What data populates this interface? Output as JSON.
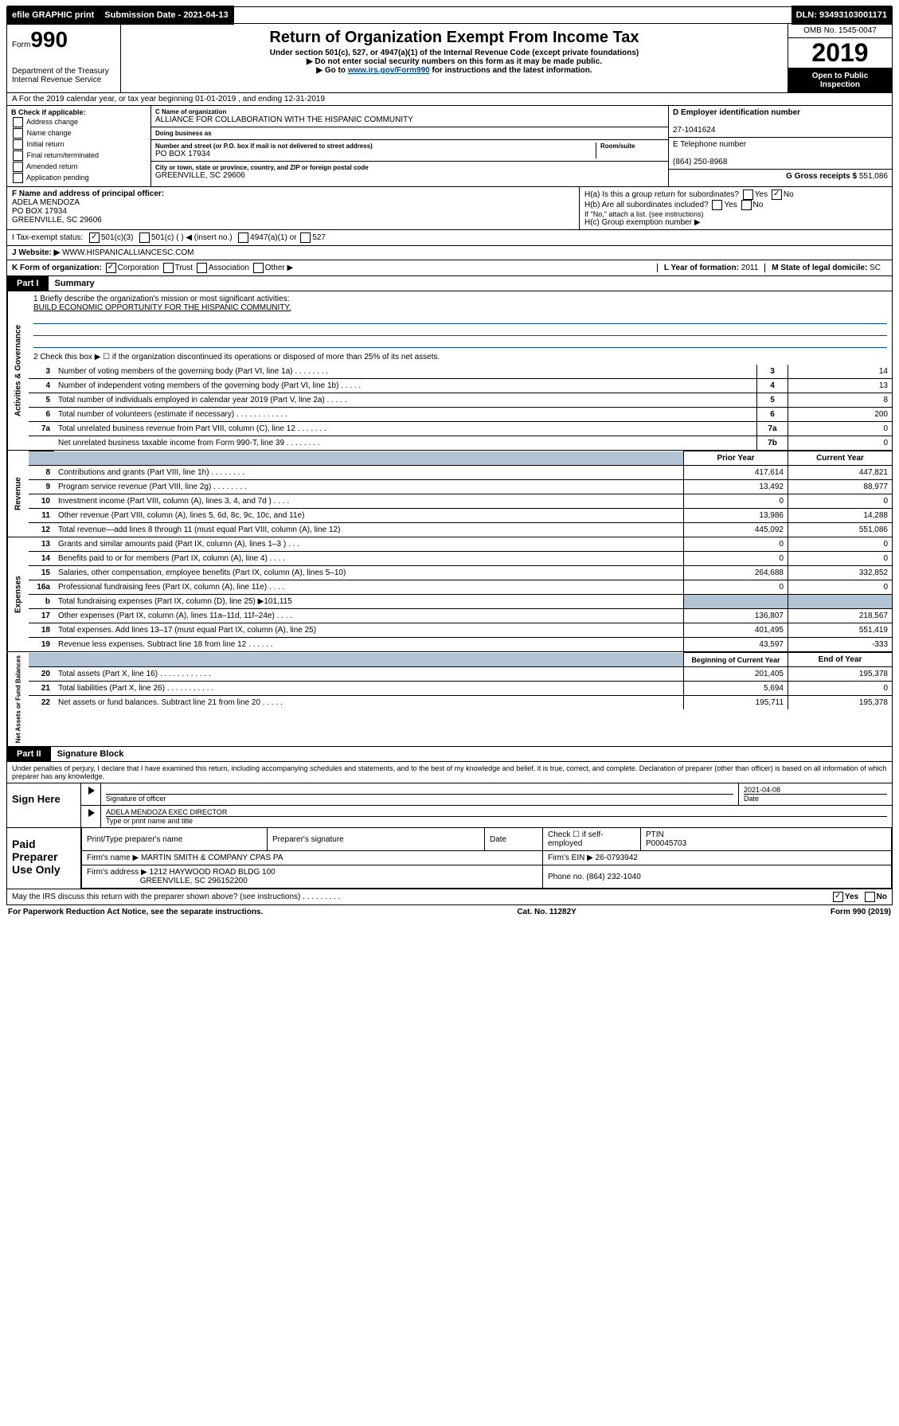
{
  "topbar": {
    "efile": "efile GRAPHIC print",
    "submission_label": "Submission Date - 2021-04-13",
    "dln": "DLN: 93493103001171"
  },
  "header": {
    "form_prefix": "Form",
    "form_number": "990",
    "title": "Return of Organization Exempt From Income Tax",
    "subtitle": "Under section 501(c), 527, or 4947(a)(1) of the Internal Revenue Code (except private foundations)",
    "note1": "▶ Do not enter social security numbers on this form as it may be made public.",
    "note2_prefix": "▶ Go to ",
    "note2_link": "www.irs.gov/Form990",
    "note2_suffix": " for instructions and the latest information.",
    "dept": "Department of the Treasury\nInternal Revenue Service",
    "omb": "OMB No. 1545-0047",
    "year": "2019",
    "open": "Open to Public Inspection"
  },
  "row_a": "A For the 2019 calendar year, or tax year beginning 01-01-2019   , and ending 12-31-2019",
  "section_b": {
    "label": "B Check if applicable:",
    "items": [
      "Address change",
      "Name change",
      "Initial return",
      "Final return/terminated",
      "Amended return",
      "Application pending"
    ]
  },
  "section_c": {
    "name_label": "C Name of organization",
    "name": "ALLIANCE FOR COLLABORATION WITH THE HISPANIC COMMUNITY",
    "dba_label": "Doing business as",
    "dba": "",
    "addr_label": "Number and street (or P.O. box if mail is not delivered to street address)",
    "room_label": "Room/suite",
    "addr": "PO BOX 17934",
    "city_label": "City or town, state or province, country, and ZIP or foreign postal code",
    "city": "GREENVILLE, SC  29606"
  },
  "section_d": {
    "ein_label": "D Employer identification number",
    "ein": "27-1041624",
    "phone_label": "E Telephone number",
    "phone": "(864) 250-8968",
    "gross_label": "G Gross receipts $",
    "gross": "551,086"
  },
  "section_f": {
    "label": "F  Name and address of principal officer:",
    "name": "ADELA MENDOZA",
    "addr1": "PO BOX 17934",
    "addr2": "GREENVILLE, SC  29606"
  },
  "section_h": {
    "ha": "H(a)  Is this a group return for subordinates?",
    "hb": "H(b)  Are all subordinates included?",
    "hb_note": "If \"No,\" attach a list. (see instructions)",
    "hc": "H(c)  Group exemption number ▶"
  },
  "row_i": {
    "label": "I   Tax-exempt status:",
    "opts": [
      "501(c)(3)",
      "501(c) (  ) ◀ (insert no.)",
      "4947(a)(1) or",
      "527"
    ]
  },
  "row_j": {
    "label": "J   Website: ▶",
    "value": "WWW.HISPANICALLIANCESC.COM"
  },
  "row_k": {
    "label": "K Form of organization:",
    "opts": [
      "Corporation",
      "Trust",
      "Association",
      "Other ▶"
    ],
    "l_label": "L Year of formation:",
    "l_val": "2011",
    "m_label": "M State of legal domicile:",
    "m_val": "SC"
  },
  "part1": {
    "tab": "Part I",
    "title": "Summary"
  },
  "governance": {
    "side": "Activities & Governance",
    "line1_label": "1   Briefly describe the organization's mission or most significant activities:",
    "line1_value": "BUILD ECONOMIC OPPORTUNITY FOR THE HISPANIC COMMUNITY.",
    "line2": "2   Check this box ▶ ☐  if the organization discontinued its operations or disposed of more than 25% of its net assets.",
    "rows": [
      {
        "n": "3",
        "t": "Number of voting members of the governing body (Part VI, line 1a)   .   .   .   .   .   .   .   .",
        "b": "3",
        "v": "14"
      },
      {
        "n": "4",
        "t": "Number of independent voting members of the governing body (Part VI, line 1b)   .   .   .   .   .",
        "b": "4",
        "v": "13"
      },
      {
        "n": "5",
        "t": "Total number of individuals employed in calendar year 2019 (Part V, line 2a)   .   .   .   .   .",
        "b": "5",
        "v": "8"
      },
      {
        "n": "6",
        "t": "Total number of volunteers (estimate if necessary)   .   .   .   .   .   .   .   .   .   .   .   .",
        "b": "6",
        "v": "200"
      },
      {
        "n": "7a",
        "t": "Total unrelated business revenue from Part VIII, column (C), line 12   .   .   .   .   .   .   .",
        "b": "7a",
        "v": "0"
      },
      {
        "n": "",
        "t": "Net unrelated business taxable income from Form 990-T, line 39   .   .   .   .   .   .   .   .",
        "b": "7b",
        "v": "0"
      }
    ]
  },
  "revenue": {
    "side": "Revenue",
    "header_prior": "Prior Year",
    "header_current": "Current Year",
    "rows": [
      {
        "n": "8",
        "t": "Contributions and grants (Part VIII, line 1h)   .   .   .   .   .   .   .   .",
        "p": "417,614",
        "c": "447,821"
      },
      {
        "n": "9",
        "t": "Program service revenue (Part VIII, line 2g)   .   .   .   .   .   .   .   .",
        "p": "13,492",
        "c": "88,977"
      },
      {
        "n": "10",
        "t": "Investment income (Part VIII, column (A), lines 3, 4, and 7d )   .   .   .   .",
        "p": "0",
        "c": "0"
      },
      {
        "n": "11",
        "t": "Other revenue (Part VIII, column (A), lines 5, 6d, 8c, 9c, 10c, and 11e)",
        "p": "13,986",
        "c": "14,288"
      },
      {
        "n": "12",
        "t": "Total revenue—add lines 8 through 11 (must equal Part VIII, column (A), line 12)",
        "p": "445,092",
        "c": "551,086"
      }
    ]
  },
  "expenses": {
    "side": "Expenses",
    "rows": [
      {
        "n": "13",
        "t": "Grants and similar amounts paid (Part IX, column (A), lines 1–3 )   .   .   .",
        "p": "0",
        "c": "0"
      },
      {
        "n": "14",
        "t": "Benefits paid to or for members (Part IX, column (A), line 4)   .   .   .   .",
        "p": "0",
        "c": "0"
      },
      {
        "n": "15",
        "t": "Salaries, other compensation, employee benefits (Part IX, column (A), lines 5–10)",
        "p": "264,688",
        "c": "332,852"
      },
      {
        "n": "16a",
        "t": "Professional fundraising fees (Part IX, column (A), line 11e)   .   .   .   .",
        "p": "0",
        "c": "0"
      },
      {
        "n": "b",
        "t": "Total fundraising expenses (Part IX, column (D), line 25) ▶101,115",
        "p": "",
        "c": "",
        "shaded": true
      },
      {
        "n": "17",
        "t": "Other expenses (Part IX, column (A), lines 11a–11d, 11f–24e)   .   .   .   .",
        "p": "136,807",
        "c": "218,567"
      },
      {
        "n": "18",
        "t": "Total expenses. Add lines 13–17 (must equal Part IX, column (A), line 25)",
        "p": "401,495",
        "c": "551,419"
      },
      {
        "n": "19",
        "t": "Revenue less expenses. Subtract line 18 from line 12   .   .   .   .   .   .",
        "p": "43,597",
        "c": "-333"
      }
    ]
  },
  "netassets": {
    "side": "Net Assets or Fund Balances",
    "header_begin": "Beginning of Current Year",
    "header_end": "End of Year",
    "rows": [
      {
        "n": "20",
        "t": "Total assets (Part X, line 16)   .   .   .   .   .   .   .   .   .   .   .   .",
        "p": "201,405",
        "c": "195,378"
      },
      {
        "n": "21",
        "t": "Total liabilities (Part X, line 26)   .   .   .   .   .   .   .   .   .   .   .",
        "p": "5,694",
        "c": "0"
      },
      {
        "n": "22",
        "t": "Net assets or fund balances. Subtract line 21 from line 20   .   .   .   .   .",
        "p": "195,711",
        "c": "195,378"
      }
    ]
  },
  "part2": {
    "tab": "Part II",
    "title": "Signature Block"
  },
  "perjury": "Under penalties of perjury, I declare that I have examined this return, including accompanying schedules and statements, and to the best of my knowledge and belief, it is true, correct, and complete. Declaration of preparer (other than officer) is based on all information of which preparer has any knowledge.",
  "sign": {
    "left": "Sign Here",
    "date": "2021-04-08",
    "date_label": "Date",
    "sig_label": "Signature of officer",
    "name": "ADELA MENDOZA  EXEC DIRECTOR",
    "name_label": "Type or print name and title"
  },
  "paid": {
    "left": "Paid Preparer Use Only",
    "h1": "Print/Type preparer's name",
    "h2": "Preparer's signature",
    "h3": "Date",
    "h4_check": "Check ☐ if self-employed",
    "h5": "PTIN",
    "ptin": "P00045703",
    "firm_label": "Firm's name     ▶",
    "firm": "MARTIN SMITH & COMPANY CPAS PA",
    "ein_label": "Firm's EIN ▶",
    "ein": "26-0793942",
    "addr_label": "Firm's address ▶",
    "addr1": "1212 HAYWOOD ROAD BLDG 100",
    "addr2": "GREENVILLE, SC  296152200",
    "phone_label": "Phone no.",
    "phone": "(864) 232-1040"
  },
  "discuss": "May the IRS discuss this return with the preparer shown above? (see instructions)   .   .   .   .   .   .   .   .   .",
  "footer": {
    "left": "For Paperwork Reduction Act Notice, see the separate instructions.",
    "mid": "Cat. No. 11282Y",
    "right": "Form 990 (2019)"
  }
}
